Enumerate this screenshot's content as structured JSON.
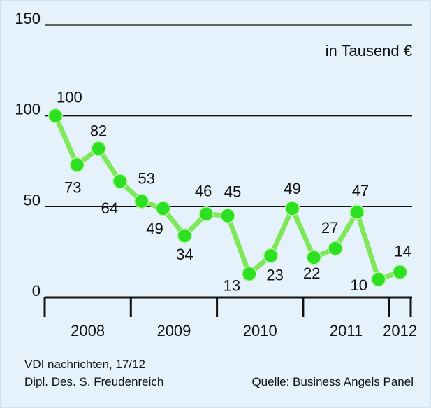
{
  "chart_data": {
    "type": "line",
    "unit_label": "in Tausend €",
    "categories": [
      null,
      null,
      null,
      null,
      null,
      null,
      null,
      null,
      null,
      null,
      null,
      null,
      null,
      null,
      null,
      null,
      null
    ],
    "x_group_labels": [
      "2008",
      "2009",
      "2010",
      "2011",
      "2012"
    ],
    "values": [
      100,
      73,
      82,
      64,
      53,
      49,
      34,
      46,
      45,
      13,
      23,
      49,
      22,
      27,
      47,
      10,
      14
    ],
    "color": "#7ee85a",
    "marker_color": "#2ee022",
    "ylim": [
      0,
      150
    ],
    "yticks": [
      0,
      50,
      100,
      150
    ],
    "grid": true
  },
  "footer": {
    "publication": "VDI nachrichten, 17/12",
    "designer": "Dipl. Des. S. Freudenreich",
    "source": "Quelle: Business Angels Panel"
  }
}
